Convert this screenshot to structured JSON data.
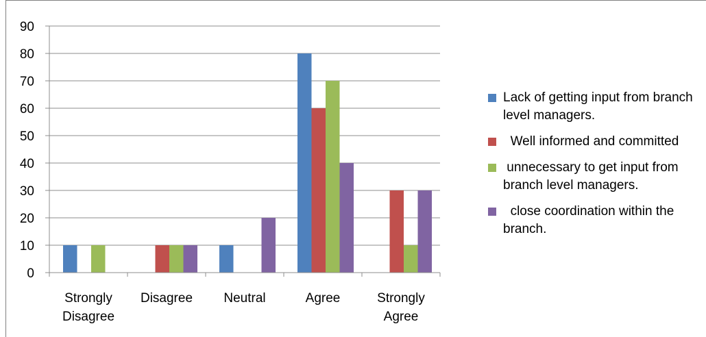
{
  "chart_data": {
    "type": "bar",
    "categories": [
      "Strongly\nDisagree",
      "Disagree",
      "Neutral",
      "Agree",
      "Strongly\nAgree"
    ],
    "series": [
      {
        "name": "Lack of getting input from branch level managers.",
        "color": "#4f81bd",
        "values": [
          10,
          0,
          10,
          80,
          0
        ]
      },
      {
        "name": "  Well informed and committed",
        "color": "#c0504d",
        "values": [
          0,
          10,
          0,
          60,
          30
        ]
      },
      {
        "name": " unnecessary to get input from branch level managers.",
        "color": "#9bbb59",
        "values": [
          10,
          10,
          0,
          70,
          10
        ]
      },
      {
        "name": "  close coordination within the branch.",
        "color": "#8064a2",
        "values": [
          0,
          10,
          20,
          40,
          30
        ]
      }
    ],
    "ylim": [
      0,
      90
    ],
    "yticks": [
      0,
      10,
      20,
      30,
      40,
      50,
      60,
      70,
      80,
      90
    ],
    "grid": true,
    "legend_position": "right"
  }
}
